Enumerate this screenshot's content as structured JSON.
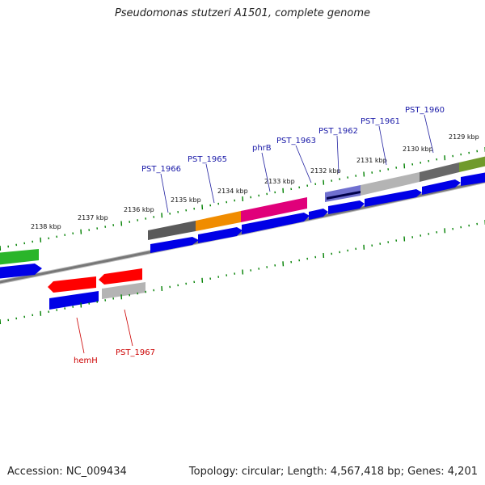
{
  "title": "Pseudomonas stutzeri A1501, complete genome",
  "footer": {
    "accession": "Accession: NC_009434",
    "topology": "Topology: circular; Length: 4,567,418 bp; Genes: 4,201"
  },
  "colors": {
    "label_blue": "#1a1aa8",
    "label_red": "#cc0000",
    "backbone": "#777777",
    "tick_green": "#008000",
    "cds_blue": "#0000e6"
  },
  "scale_labels": [
    "2138 kbp",
    "2137 kbp",
    "2136 kbp",
    "2135 kbp",
    "2134 kbp",
    "2133 kbp",
    "2132 kbp",
    "2131 kbp",
    "2130 kbp",
    "2129 kbp"
  ],
  "gene_labels_forward": [
    "PST_1966",
    "PST_1965",
    "phrB",
    "PST_1963",
    "PST_1962",
    "PST_1961",
    "PST_1960"
  ],
  "gene_labels_reverse": [
    "hemH",
    "PST_1967"
  ]
}
